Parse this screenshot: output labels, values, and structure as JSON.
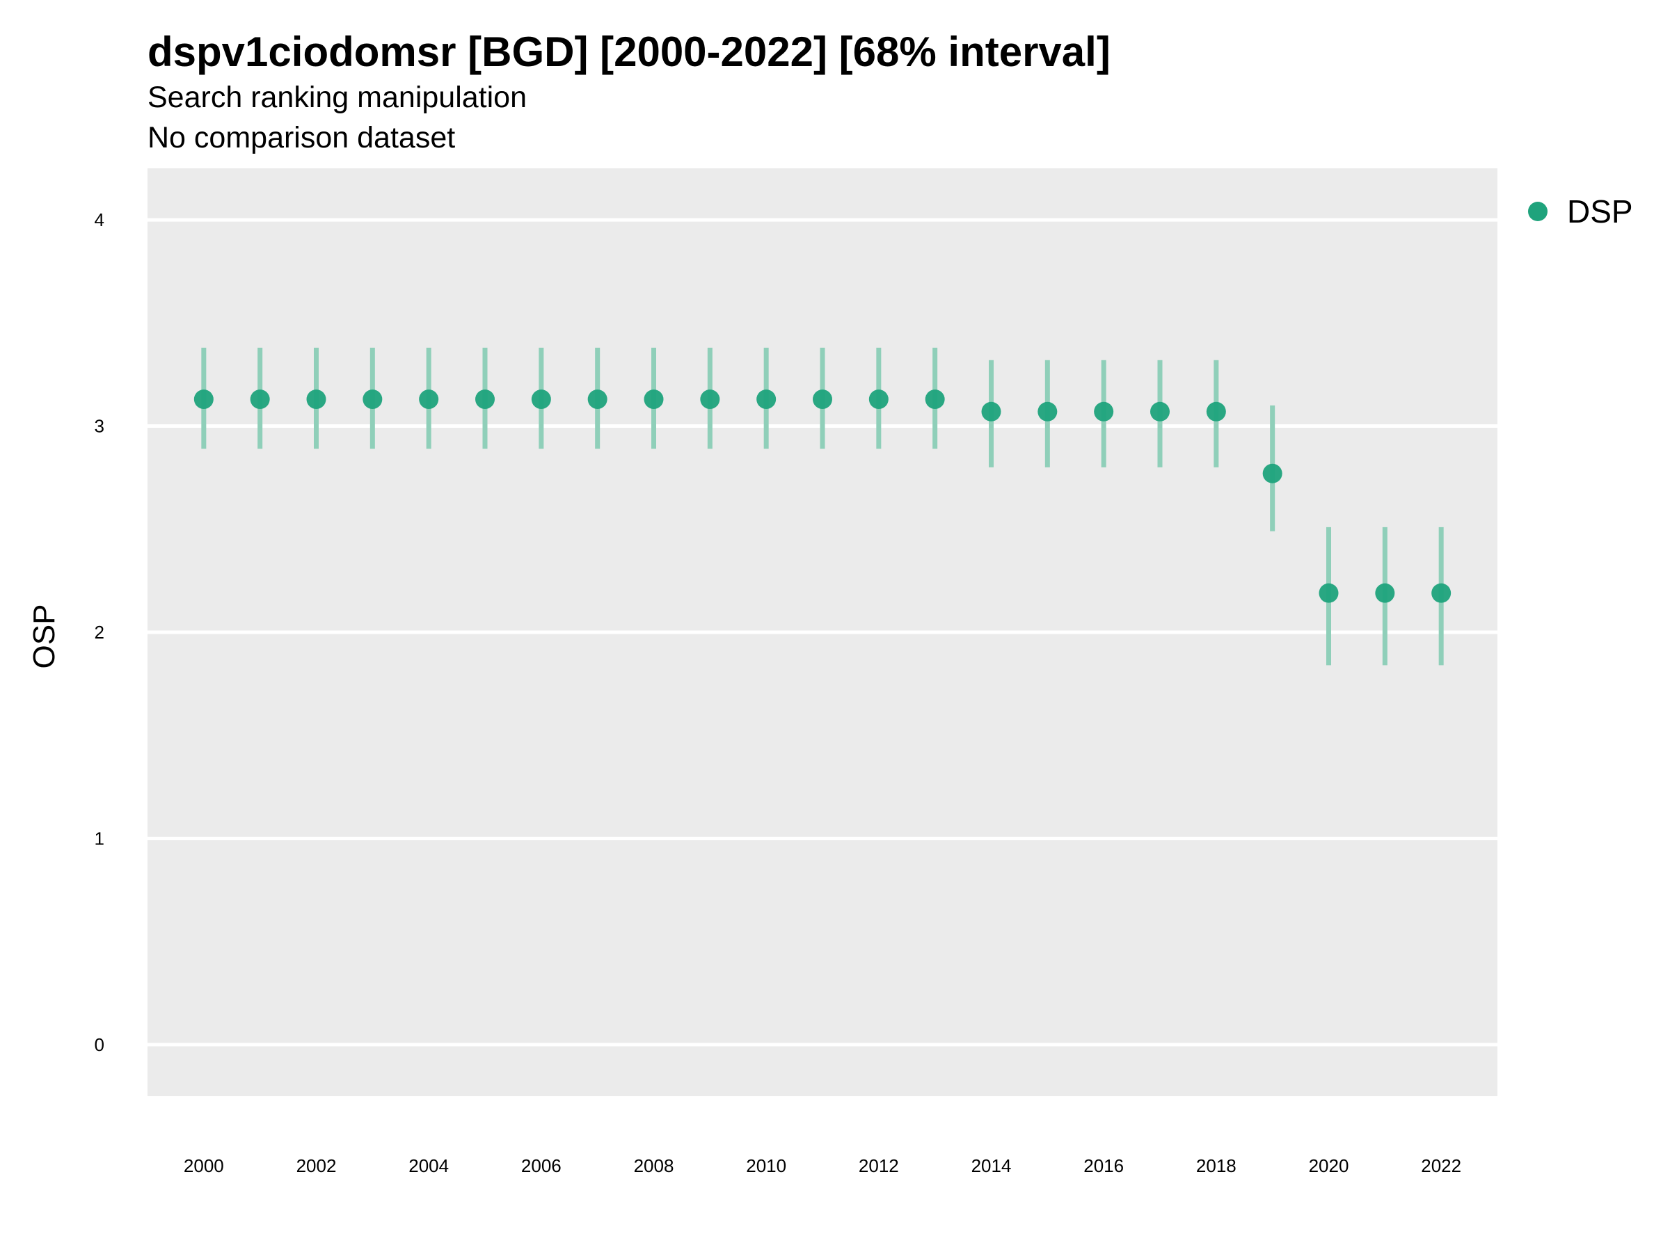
{
  "title": "dspv1ciodomsr [BGD] [2000-2022] [68% interval]",
  "subtitle": "Search ranking manipulation",
  "caption": "No comparison dataset",
  "chart_data": {
    "type": "scatter",
    "error_bars": "68% interval",
    "xlabel": "",
    "ylabel": "OSP",
    "xlim": [
      1999,
      2023
    ],
    "ylim": [
      -0.25,
      4.25
    ],
    "yticks": [
      0,
      1,
      2,
      3,
      4
    ],
    "xticks": [
      2000,
      2002,
      2004,
      2006,
      2008,
      2010,
      2012,
      2014,
      2016,
      2018,
      2020,
      2022
    ],
    "grid": "horizontal major lines",
    "legend": "right",
    "colors": {
      "point": "#1fa37c",
      "error_bar": "#8fcfb9",
      "panel": "#ebebeb",
      "grid": "#ffffff"
    },
    "series": [
      {
        "name": "DSP",
        "x": [
          2000,
          2001,
          2002,
          2003,
          2004,
          2005,
          2006,
          2007,
          2008,
          2009,
          2010,
          2011,
          2012,
          2013,
          2014,
          2015,
          2016,
          2017,
          2018,
          2019,
          2020,
          2021,
          2022
        ],
        "y": [
          3.13,
          3.13,
          3.13,
          3.13,
          3.13,
          3.13,
          3.13,
          3.13,
          3.13,
          3.13,
          3.13,
          3.13,
          3.13,
          3.13,
          3.07,
          3.07,
          3.07,
          3.07,
          3.07,
          2.77,
          2.19,
          2.19,
          2.19
        ],
        "lower": [
          2.89,
          2.89,
          2.89,
          2.89,
          2.89,
          2.89,
          2.89,
          2.89,
          2.89,
          2.89,
          2.89,
          2.89,
          2.89,
          2.89,
          2.8,
          2.8,
          2.8,
          2.8,
          2.8,
          2.49,
          1.84,
          1.84,
          1.84
        ],
        "upper": [
          3.38,
          3.38,
          3.38,
          3.38,
          3.38,
          3.38,
          3.38,
          3.38,
          3.38,
          3.38,
          3.38,
          3.38,
          3.38,
          3.38,
          3.32,
          3.32,
          3.32,
          3.32,
          3.32,
          3.1,
          2.51,
          2.51,
          2.51
        ]
      }
    ]
  }
}
